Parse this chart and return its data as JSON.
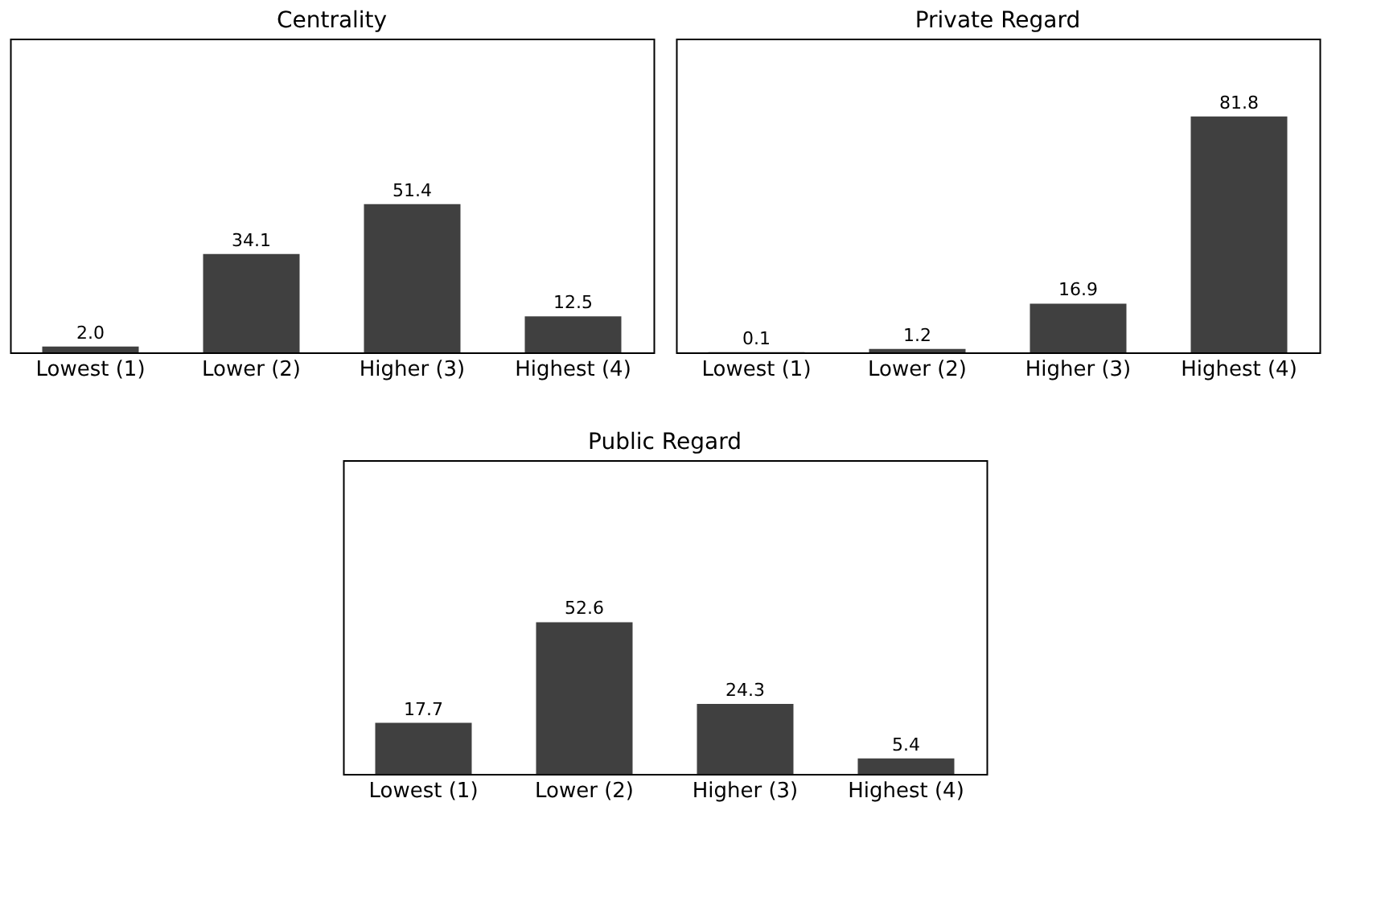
{
  "chart_data": [
    {
      "type": "bar",
      "title": "Centrality",
      "categories": [
        "Lowest (1)",
        "Lower (2)",
        "Higher (3)",
        "Highest (4)"
      ],
      "values": [
        2.0,
        34.1,
        51.4,
        12.5
      ],
      "value_labels": [
        "2.0",
        "34.1",
        "51.4",
        "12.5"
      ],
      "color": "#404040"
    },
    {
      "type": "bar",
      "title": "Private Regard",
      "categories": [
        "Lowest (1)",
        "Lower (2)",
        "Higher (3)",
        "Highest (4)"
      ],
      "values": [
        0.1,
        1.2,
        16.9,
        81.8
      ],
      "value_labels": [
        "0.1",
        "1.2",
        "16.9",
        "81.8"
      ],
      "color": "#404040"
    },
    {
      "type": "bar",
      "title": "Public Regard",
      "categories": [
        "Lowest (1)",
        "Lower (2)",
        "Higher (3)",
        "Highest (4)"
      ],
      "values": [
        17.7,
        52.6,
        24.3,
        5.4
      ],
      "value_labels": [
        "17.7",
        "52.6",
        "24.3",
        "5.4"
      ],
      "color": "#404040"
    }
  ]
}
